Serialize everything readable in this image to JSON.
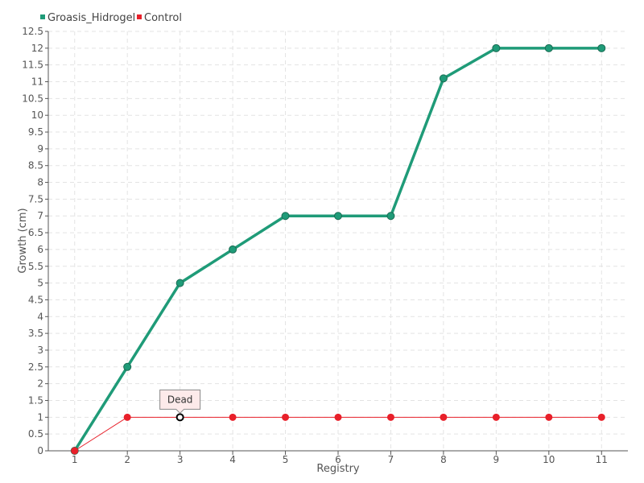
{
  "chart_data": {
    "type": "line",
    "xlabel": "Registry",
    "ylabel": "Growth (cm)",
    "x": [
      1,
      2,
      3,
      4,
      5,
      6,
      7,
      8,
      9,
      10,
      11
    ],
    "ylim": [
      0,
      12.5
    ],
    "xlim": [
      0.5,
      11.5
    ],
    "y_ticks": [
      "0",
      "0.5",
      "1",
      "1.5",
      "2",
      "2.5",
      "3",
      "3.5",
      "4",
      "4.5",
      "5",
      "5.5",
      "6",
      "6.5",
      "7",
      "7.5",
      "8",
      "8.5",
      "9",
      "9.5",
      "10",
      "10.5",
      "11",
      "11.5",
      "12",
      "12.5"
    ],
    "grid": true,
    "legend_position": "top-left",
    "series": [
      {
        "name": "Groasis_Hidrogel",
        "color": "#1f9b78",
        "values": [
          0,
          2.5,
          5,
          6,
          7,
          7,
          7,
          11.1,
          12,
          12,
          12
        ]
      },
      {
        "name": "Control",
        "color": "#e8202a",
        "values": [
          0,
          1,
          1,
          1,
          1,
          1,
          1,
          1,
          1,
          1,
          1
        ]
      }
    ],
    "annotations": [
      {
        "text": "Dead",
        "series": "Control",
        "x": 3,
        "y": 1
      }
    ]
  }
}
